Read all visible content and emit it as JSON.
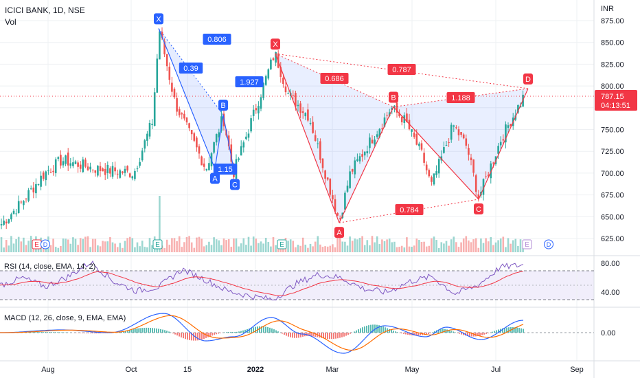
{
  "header": {
    "symbol_line": "ICICI BANK, 1D, NSE",
    "vol_label": "Vol",
    "currency": "INR"
  },
  "price_axis": {
    "ticks": [
      "875.00",
      "850.00",
      "825.00",
      "800.00",
      "775.00",
      "750.00",
      "725.00",
      "700.00",
      "675.00",
      "650.00",
      "625.00"
    ]
  },
  "last_price": {
    "value": "787.15",
    "countdown": "04:13:51",
    "color": "#f23645"
  },
  "time_axis": {
    "ticks": [
      "Aug",
      "Oct",
      "15",
      "2022",
      "Mar",
      "May",
      "Jul",
      "Sep"
    ]
  },
  "rsi": {
    "label": "RSI (14, close, EMA, 14, 2)",
    "ticks": [
      "80.00",
      "40.00"
    ]
  },
  "macd": {
    "label": "MACD (12, 26, close, 9, EMA, EMA)",
    "ticks": [
      "0.00"
    ]
  },
  "event_badges": [
    "E",
    "D",
    "E",
    "E",
    "E",
    "D"
  ],
  "colors": {
    "up": "#26a69a",
    "down": "#ef5350",
    "blue": "#2962ff",
    "red": "#f23645",
    "rsi_line": "#7e57c2",
    "rsi_ma": "#f23645",
    "macd_line": "#2962ff",
    "signal_line": "#ff6d00"
  },
  "chart_data": {
    "type": "candlestick",
    "title": "ICICI BANK, 1D, NSE",
    "ylabel": "INR",
    "ylim": [
      612,
      885
    ],
    "approx_close_path": [
      {
        "x": "late Jun 2021",
        "y": 640
      },
      {
        "x": "Jul 2021",
        "y": 665
      },
      {
        "x": "early Aug",
        "y": 700
      },
      {
        "x": "Aug",
        "y": 715
      },
      {
        "x": "Sep",
        "y": 705
      },
      {
        "x": "Sep",
        "y": 700
      },
      {
        "x": "late Sep",
        "y": 760
      },
      {
        "x": "Oct",
        "y": 865
      },
      {
        "x": "Oct",
        "y": 780
      },
      {
        "x": "Nov",
        "y": 705
      },
      {
        "x": "Nov",
        "y": 765
      },
      {
        "x": "Dec",
        "y": 700
      },
      {
        "x": "Jan 2022",
        "y": 838
      },
      {
        "x": "Jan",
        "y": 790
      },
      {
        "x": "Feb",
        "y": 765
      },
      {
        "x": "Mar",
        "y": 645
      },
      {
        "x": "Mar",
        "y": 700
      },
      {
        "x": "Apr",
        "y": 775
      },
      {
        "x": "Apr",
        "y": 760
      },
      {
        "x": "May",
        "y": 720
      },
      {
        "x": "May",
        "y": 685
      },
      {
        "x": "Jun",
        "y": 755
      },
      {
        "x": "Jun",
        "y": 730
      },
      {
        "x": "late Jun",
        "y": 672
      },
      {
        "x": "Jul",
        "y": 740
      },
      {
        "x": "Jul",
        "y": 787.15
      }
    ],
    "harmonic_patterns": [
      {
        "color": "blue",
        "points": [
          {
            "label": "X",
            "price": 866
          },
          {
            "label": "A",
            "price": 705
          },
          {
            "label": "B",
            "price": 767
          },
          {
            "label": "C",
            "price": 698
          }
        ],
        "ratios": [
          "0.806",
          "0.39",
          "1.927",
          "1.15"
        ]
      },
      {
        "color": "red",
        "points": [
          {
            "label": "X",
            "price": 837
          },
          {
            "label": "A",
            "price": 643
          },
          {
            "label": "B",
            "price": 776
          },
          {
            "label": "C",
            "price": 670
          },
          {
            "label": "D",
            "price": 797
          }
        ],
        "ratios": [
          "0.686",
          "0.787",
          "1.188",
          "0.784"
        ]
      }
    ],
    "rsi": {
      "range": [
        20,
        90
      ],
      "levels": [
        70,
        30
      ],
      "approx_values": [
        50,
        60,
        48,
        62,
        82,
        55,
        42,
        48,
        72,
        58,
        42,
        35,
        30,
        52,
        65,
        60,
        45,
        40,
        55,
        62,
        38,
        50,
        75,
        78
      ]
    },
    "macd": {
      "zero_line": 0
    }
  }
}
